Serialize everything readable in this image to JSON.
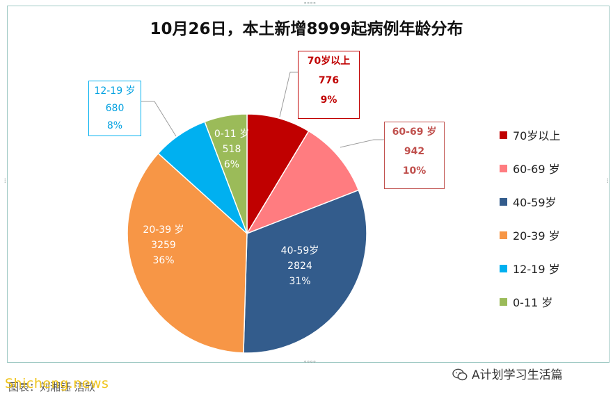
{
  "title": "10月26日，本土新增8999起病例年龄分布",
  "chart_data": {
    "type": "pie",
    "title": "10月26日，本土新增8999起病例年龄分布",
    "slices": [
      {
        "label": "70岁以上",
        "value": 776,
        "percent": "9%",
        "color": "#c00000"
      },
      {
        "label": "60-69 岁",
        "value": 942,
        "percent": "10%",
        "color": "#ff7c80"
      },
      {
        "label": "40-59岁",
        "value": 2824,
        "percent": "31%",
        "color": "#335c8c"
      },
      {
        "label": "20-39 岁",
        "value": 3259,
        "percent": "36%",
        "color": "#f79646"
      },
      {
        "label": "12-19 岁",
        "value": 680,
        "percent": "8%",
        "color": "#00b0f0"
      },
      {
        "label": "0-11 岁",
        "value": 518,
        "percent": "6%",
        "color": "#9bbb59"
      }
    ],
    "legend_position": "right"
  },
  "callouts": {
    "s70": {
      "label": "70岁以上",
      "value": "776",
      "percent": "9%"
    },
    "s60": {
      "label": "60-69 岁",
      "value": "942",
      "percent": "10%"
    },
    "s12": {
      "label": "12-19 岁",
      "value": "680",
      "percent": "8%"
    }
  },
  "inner_labels": {
    "s0": {
      "label": "0-11 岁",
      "value": "518",
      "percent": "6%"
    },
    "s40": {
      "label": "40-59岁",
      "value": "2824",
      "percent": "31%"
    },
    "s20": {
      "label": "20-39 岁",
      "value": "3259",
      "percent": "36%"
    }
  },
  "legend": [
    {
      "label": "70岁以上",
      "color": "#c00000"
    },
    {
      "label": "60-69 岁",
      "color": "#ff7c80"
    },
    {
      "label": "40-59岁",
      "color": "#335c8c"
    },
    {
      "label": "20-39 岁",
      "color": "#f79646"
    },
    {
      "label": "12-19 岁",
      "color": "#00b0f0"
    },
    {
      "label": "0-11 岁",
      "color": "#9bbb59"
    }
  ],
  "source_text": "图表：刘湘钰 洁欣",
  "watermark_text": "Shicheng.news",
  "wechat_account": "A计划学习生活篇"
}
